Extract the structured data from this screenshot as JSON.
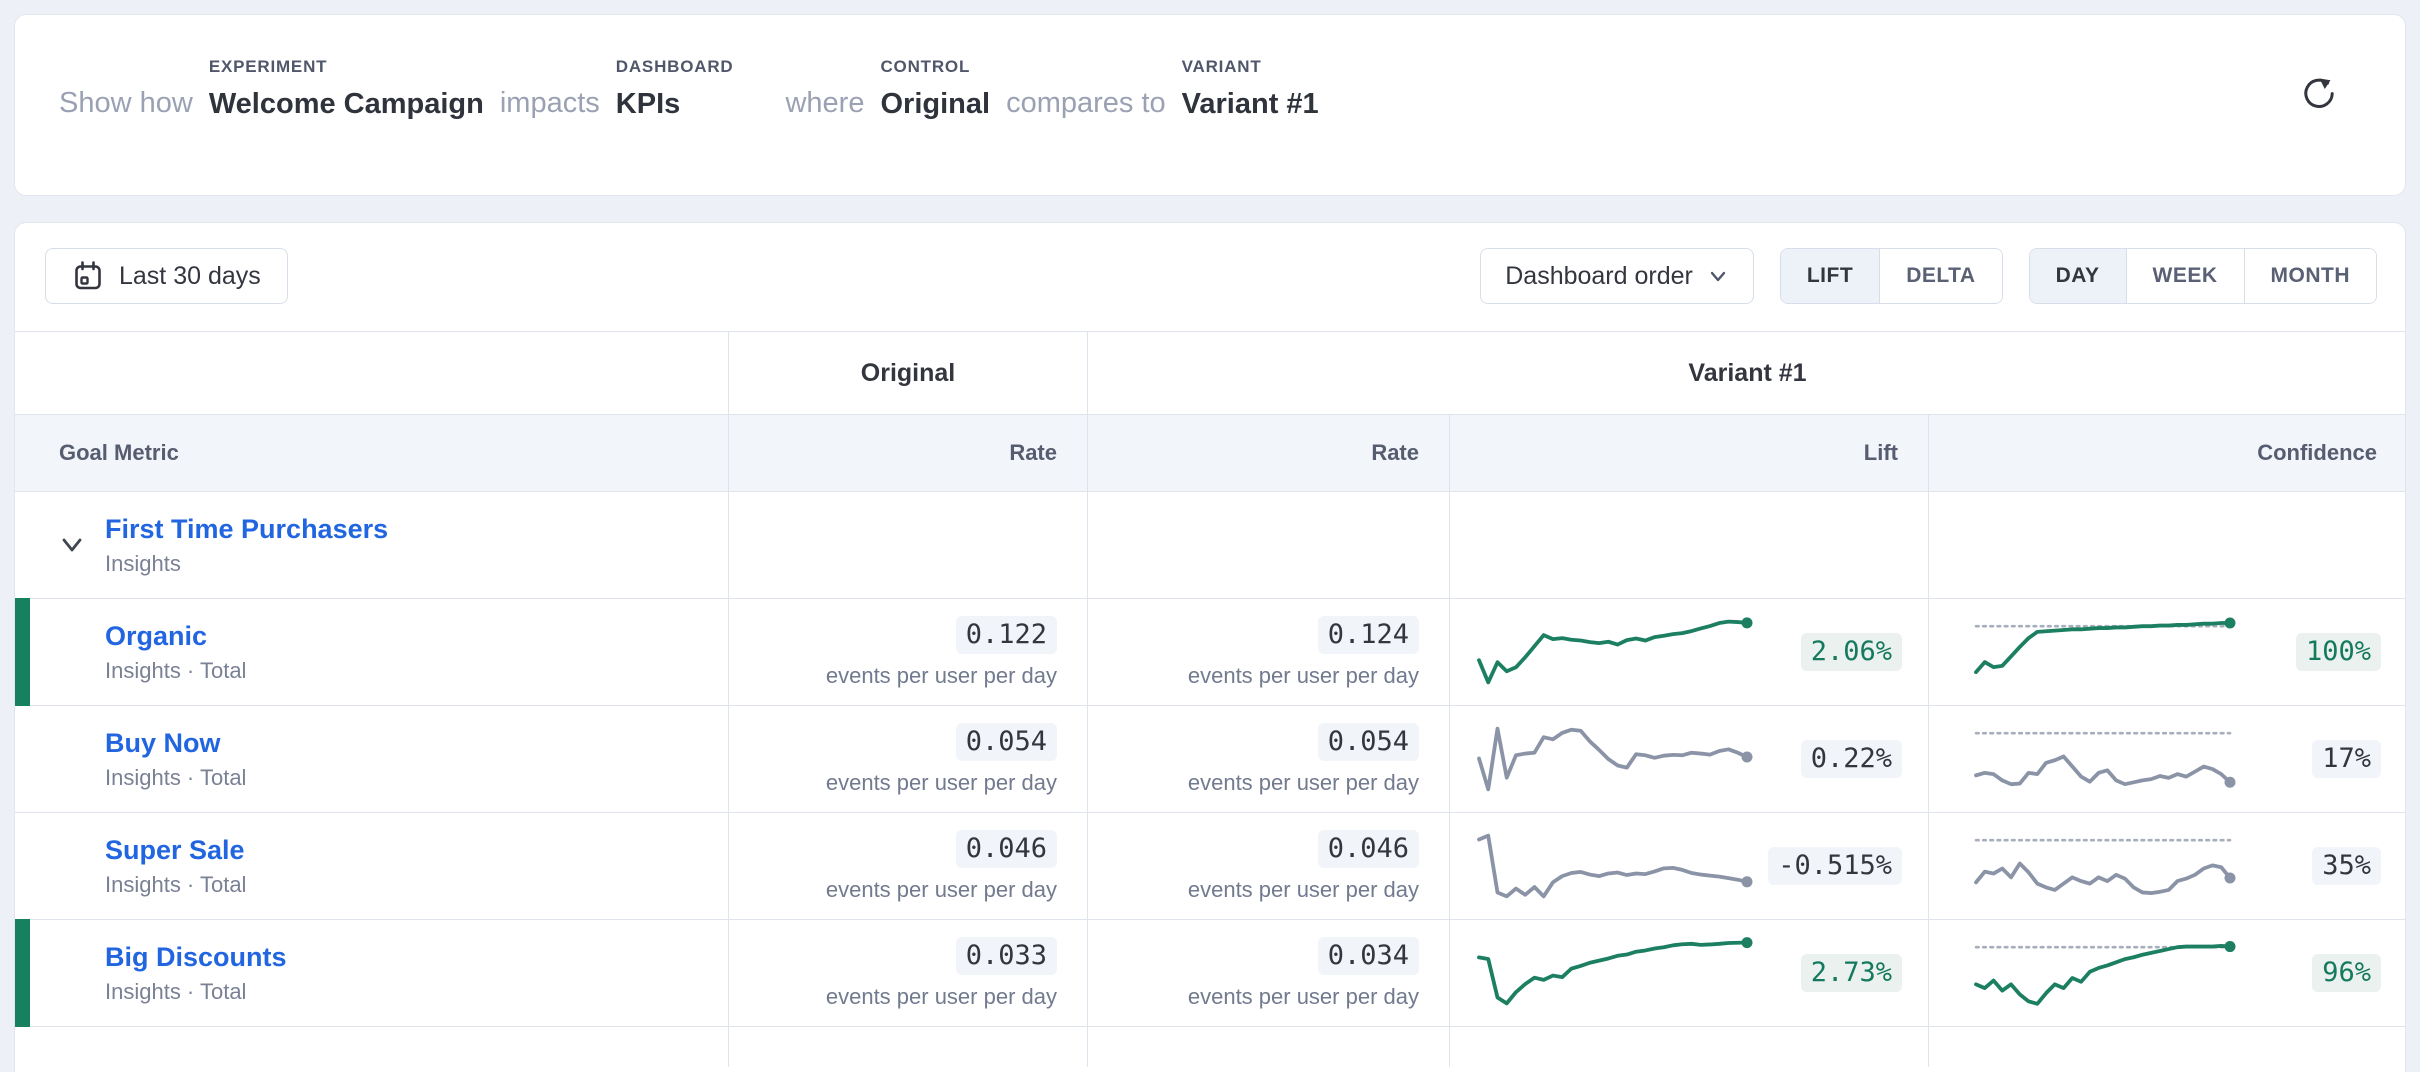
{
  "header": {
    "labels": {
      "experiment": "EXPERIMENT",
      "dashboard": "DASHBOARD",
      "control": "CONTROL",
      "variant": "VARIANT"
    },
    "sentence": {
      "show_how": "Show how",
      "experiment_value": "Welcome Campaign",
      "impacts": "impacts",
      "dashboard_value": "KPIs",
      "where": "where",
      "control_value": "Original",
      "compares_to": "compares to",
      "variant_value": "Variant #1"
    }
  },
  "toolbar": {
    "date_range": "Last 30 days",
    "order_label": "Dashboard order",
    "mode_toggle": {
      "options": [
        "LIFT",
        "DELTA"
      ],
      "selected": "LIFT"
    },
    "granularity_toggle": {
      "options": [
        "DAY",
        "WEEK",
        "MONTH"
      ],
      "selected": "DAY"
    }
  },
  "table": {
    "group_headers": {
      "original": "Original",
      "variant": "Variant #1"
    },
    "columns": {
      "goal_metric": "Goal Metric",
      "original_rate": "Rate",
      "variant_rate": "Rate",
      "lift": "Lift",
      "confidence": "Confidence"
    },
    "group_row": {
      "name": "First Time Purchasers",
      "subtitle": "Insights"
    },
    "rows": [
      {
        "name": "Organic",
        "subtitle": "Insights · Total",
        "original_rate": "0.122",
        "variant_rate": "0.124",
        "rate_unit": "events per user per day",
        "lift": "2.06%",
        "confidence": "100%",
        "significant": true,
        "lift_sparkline": {
          "color": "#1C7F61",
          "end_dot": true,
          "points": [
            0.2,
            -0.9,
            0.1,
            -0.35,
            -0.15,
            0.35,
            0.9,
            1.45,
            1.25,
            1.3,
            1.22,
            1.18,
            1.1,
            1.05,
            1.12,
            0.98,
            1.2,
            1.28,
            1.18,
            1.35,
            1.42,
            1.5,
            1.55,
            1.65,
            1.78,
            1.9,
            2.05,
            2.12,
            2.1,
            2.06
          ]
        },
        "confidence_sparkline": {
          "color": "#1C7F61",
          "end_dot": true,
          "threshold": 95,
          "domain": [
            0,
            108
          ],
          "points": [
            22,
            38,
            30,
            32,
            47,
            62,
            76,
            86,
            87,
            88,
            89,
            90,
            90,
            91,
            92,
            92,
            93,
            93,
            94,
            95,
            95,
            96,
            96,
            97,
            97,
            98,
            99,
            99,
            100,
            100
          ]
        }
      },
      {
        "name": "Buy Now",
        "subtitle": "Insights · Total",
        "original_rate": "0.054",
        "variant_rate": "0.054",
        "rate_unit": "events per user per day",
        "lift": "0.22%",
        "confidence": "17%",
        "significant": false,
        "lift_sparkline": {
          "color": "#8B94A7",
          "end_dot": true,
          "points": [
            0.15,
            -1.3,
            1.55,
            -0.75,
            0.3,
            0.38,
            0.42,
            1.15,
            1.05,
            1.35,
            1.5,
            1.45,
            0.95,
            0.55,
            0.12,
            -0.18,
            -0.28,
            0.35,
            0.3,
            0.18,
            0.28,
            0.32,
            0.3,
            0.42,
            0.38,
            0.33,
            0.5,
            0.58,
            0.42,
            0.22
          ]
        },
        "confidence_sparkline": {
          "color": "#8B94A7",
          "end_dot": true,
          "threshold": 95,
          "domain": [
            0,
            108
          ],
          "points": [
            28,
            32,
            30,
            20,
            14,
            15,
            32,
            30,
            48,
            52,
            58,
            42,
            26,
            18,
            32,
            36,
            20,
            14,
            17,
            20,
            22,
            27,
            24,
            30,
            26,
            34,
            42,
            38,
            30,
            17
          ]
        }
      },
      {
        "name": "Super Sale",
        "subtitle": "Insights · Total",
        "original_rate": "0.046",
        "variant_rate": "0.046",
        "rate_unit": "events per user per day",
        "lift": "-0.515%",
        "confidence": "35%",
        "significant": false,
        "lift_sparkline": {
          "color": "#8B94A7",
          "end_dot": true,
          "points": [
            2.2,
            2.45,
            -1.2,
            -1.45,
            -0.95,
            -1.35,
            -0.85,
            -1.45,
            -0.55,
            -0.15,
            0.05,
            0.12,
            -0.05,
            -0.15,
            0.02,
            0.08,
            -0.08,
            0.02,
            -0.02,
            0.15,
            0.35,
            0.38,
            0.25,
            0.05,
            -0.05,
            -0.12,
            -0.18,
            -0.28,
            -0.38,
            -0.515
          ]
        },
        "confidence_sparkline": {
          "color": "#8B94A7",
          "end_dot": true,
          "threshold": 95,
          "domain": [
            0,
            108
          ],
          "points": [
            28,
            45,
            42,
            50,
            36,
            58,
            44,
            26,
            20,
            16,
            26,
            36,
            30,
            26,
            36,
            30,
            40,
            34,
            20,
            12,
            11,
            13,
            16,
            30,
            34,
            40,
            50,
            55,
            52,
            35
          ]
        }
      },
      {
        "name": "Big Discounts",
        "subtitle": "Insights · Total",
        "original_rate": "0.033",
        "variant_rate": "0.034",
        "rate_unit": "events per user per day",
        "lift": "2.73%",
        "confidence": "96%",
        "significant": true,
        "lift_sparkline": {
          "color": "#1C7F61",
          "end_dot": true,
          "points": [
            1.35,
            1.2,
            -2.4,
            -2.95,
            -1.9,
            -1.15,
            -0.55,
            -0.75,
            -0.35,
            -0.5,
            0.3,
            0.55,
            0.85,
            1.05,
            1.25,
            1.5,
            1.62,
            1.88,
            2.0,
            2.18,
            2.3,
            2.48,
            2.58,
            2.62,
            2.52,
            2.56,
            2.62,
            2.7,
            2.72,
            2.73
          ]
        },
        "confidence_sparkline": {
          "color": "#1C7F61",
          "end_dot": true,
          "threshold": 95,
          "domain": [
            0,
            108
          ],
          "points": [
            36,
            30,
            42,
            26,
            36,
            20,
            9,
            5,
            22,
            36,
            30,
            46,
            40,
            56,
            62,
            66,
            71,
            76,
            79,
            83,
            86,
            89,
            92,
            95,
            96,
            96,
            96,
            96,
            97,
            96
          ]
        }
      }
    ]
  },
  "colors": {
    "page_bg": "#EDF0F6",
    "card_border": "#E1E6EE",
    "table_border": "#DEE3EC",
    "link_blue": "#2166E0",
    "text_dark": "#33363F",
    "text_gray": "#7A8195",
    "green_bar": "#17805F",
    "green_text": "#15795E",
    "green_chip_bg": "#EAF1EE",
    "neutral_chip_bg": "#F1F4F8",
    "spark_green": "#1C7F61",
    "spark_gray": "#8B94A7",
    "threshold_dotted": "#A7AEBC",
    "selected_segment_bg": "#EDF1F8"
  }
}
